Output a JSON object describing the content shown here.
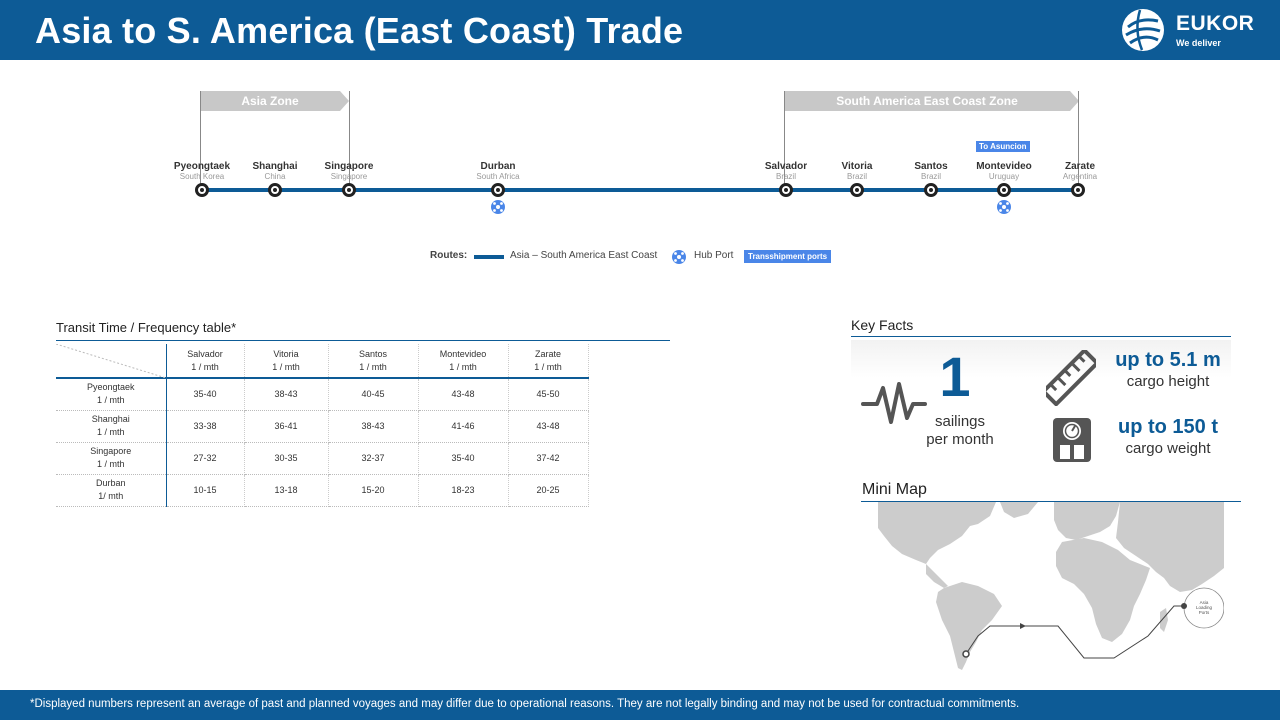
{
  "header": {
    "title": "Asia to S. America (East Coast) Trade"
  },
  "brand": {
    "name": "EUKOR",
    "tagline": "We deliver"
  },
  "zones": {
    "asia": "Asia Zone",
    "south_america": "South America East Coast Zone"
  },
  "ports": [
    {
      "name": "Pyeongtaek",
      "country": "South Korea"
    },
    {
      "name": "Shanghai",
      "country": "China"
    },
    {
      "name": "Singapore",
      "country": "Singapore"
    },
    {
      "name": "Durban",
      "country": "South Africa"
    },
    {
      "name": "Salvador",
      "country": "Brazil"
    },
    {
      "name": "Vitoria",
      "country": "Brazil"
    },
    {
      "name": "Santos",
      "country": "Brazil"
    },
    {
      "name": "Montevideo",
      "country": "Uruguay"
    },
    {
      "name": "Zarate",
      "country": "Argentina"
    }
  ],
  "transshipment_tag": "To Asuncion",
  "legend": {
    "routes_label": "Routes:",
    "route_name": "Asia – South America East Coast",
    "hub_port": "Hub Port",
    "transshipment": "Transshipment ports"
  },
  "transit_table": {
    "title": "Transit Time / Frequency table*",
    "columns": [
      {
        "name": "Salvador",
        "freq": "1 / mth"
      },
      {
        "name": "Vitoria",
        "freq": "1  / mth"
      },
      {
        "name": "Santos",
        "freq": "1 / mth"
      },
      {
        "name": "Montevideo",
        "freq": "1 / mth"
      },
      {
        "name": "Zarate",
        "freq": "1 / mth"
      }
    ],
    "rows": [
      {
        "name": "Pyeongtaek",
        "freq": "1 / mth",
        "values": [
          "35-40",
          "38-43",
          "40-45",
          "43-48",
          "45-50"
        ]
      },
      {
        "name": "Shanghai",
        "freq": "1 / mth",
        "values": [
          "33-38",
          "36-41",
          "38-43",
          "41-46",
          "43-48"
        ]
      },
      {
        "name": "Singapore",
        "freq": "1  / mth",
        "values": [
          "27-32",
          "30-35",
          "32-37",
          "35-40",
          "37-42"
        ]
      },
      {
        "name": "Durban",
        "freq": "1/ mth",
        "values": [
          "10-15",
          "13-18",
          "15-20",
          "18-23",
          "20-25"
        ]
      }
    ]
  },
  "key_facts": {
    "title": "Key Facts",
    "sailings_value": "1",
    "sailings_label_1": "sailings",
    "sailings_label_2": "per month",
    "height_value": "up to 5.1 m",
    "height_label": "cargo height",
    "weight_value": "up to 150 t",
    "weight_label": "cargo weight"
  },
  "mini_map": {
    "title": "Mini Map",
    "loading_label_1": "Asia",
    "loading_label_2": "Loading",
    "loading_label_3": "Ports"
  },
  "footer": {
    "disclaimer": "*Displayed numbers represent  an average of past and planned voyages and may differ due to operational reasons. They are not legally binding and may not be used for contractual commitments."
  },
  "colors": {
    "brand": "#0d5b96",
    "zone": "#c8c8c8",
    "transshipment": "#4a86e8"
  }
}
